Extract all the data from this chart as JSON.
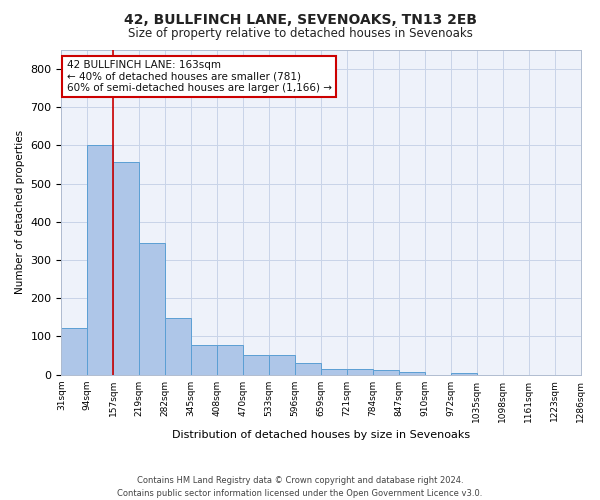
{
  "title": "42, BULLFINCH LANE, SEVENOAKS, TN13 2EB",
  "subtitle": "Size of property relative to detached houses in Sevenoaks",
  "xlabel": "Distribution of detached houses by size in Sevenoaks",
  "ylabel": "Number of detached properties",
  "bar_color": "#aec6e8",
  "bar_edge_color": "#5b9fd4",
  "bar_values": [
    122,
    601,
    556,
    345,
    148,
    78,
    77,
    51,
    51,
    30,
    15,
    14,
    13,
    6,
    0,
    5,
    0,
    0,
    0,
    0
  ],
  "categories": [
    "31sqm",
    "94sqm",
    "157sqm",
    "219sqm",
    "282sqm",
    "345sqm",
    "408sqm",
    "470sqm",
    "533sqm",
    "596sqm",
    "659sqm",
    "721sqm",
    "784sqm",
    "847sqm",
    "910sqm",
    "972sqm",
    "1035sqm",
    "1098sqm",
    "1161sqm",
    "1223sqm",
    "1286sqm"
  ],
  "ylim": [
    0,
    850
  ],
  "yticks": [
    0,
    100,
    200,
    300,
    400,
    500,
    600,
    700,
    800
  ],
  "red_line_x": 2,
  "annotation_line1": "42 BULLFINCH LANE: 163sqm",
  "annotation_line2": "← 40% of detached houses are smaller (781)",
  "annotation_line3": "60% of semi-detached houses are larger (1,166) →",
  "annotation_box_color": "#ffffff",
  "annotation_box_edge": "#cc0000",
  "footer_line1": "Contains HM Land Registry data © Crown copyright and database right 2024.",
  "footer_line2": "Contains public sector information licensed under the Open Government Licence v3.0.",
  "grid_color": "#c8d4e8",
  "background_color": "#eef2fa"
}
